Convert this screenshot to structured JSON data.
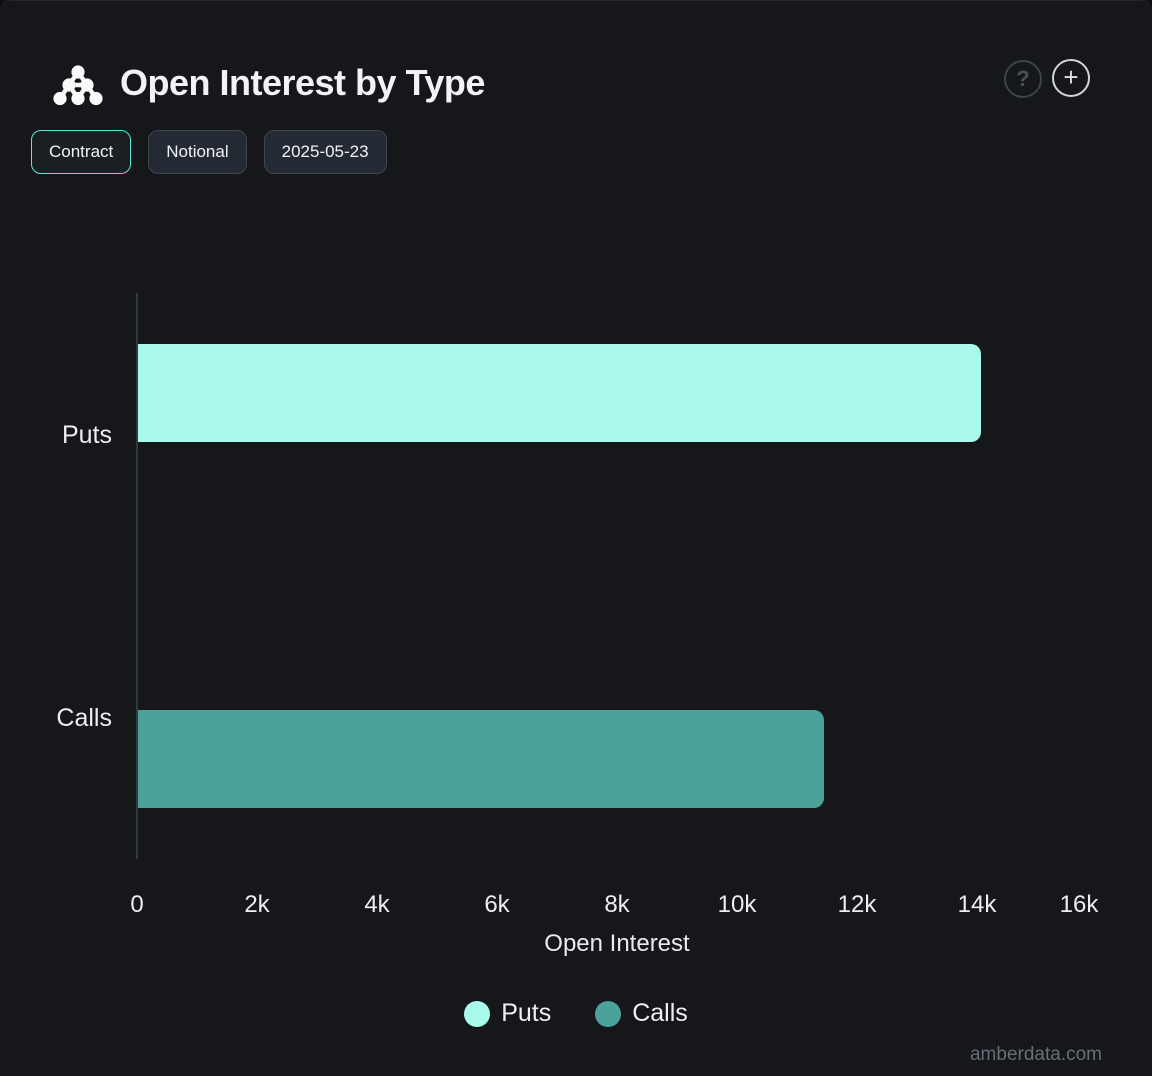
{
  "header": {
    "help_label": "?",
    "add_label": "+"
  },
  "toolbar": {
    "contract_label": "Contract",
    "notional_label": "Notional",
    "date_label": "2025-05-23"
  },
  "chart_data": {
    "type": "bar",
    "orientation": "horizontal",
    "title": "Open Interest by Type",
    "categories": [
      "Puts",
      "Calls"
    ],
    "series": [
      {
        "name": "Puts",
        "value": 14050,
        "color": "#a9faeb"
      },
      {
        "name": "Calls",
        "value": 11430,
        "color": "#4aa29a"
      }
    ],
    "xlabel": "Open Interest",
    "xlim": [
      0,
      16000
    ],
    "xticks": [
      {
        "value": 0,
        "label": "0"
      },
      {
        "value": 2000,
        "label": "2k"
      },
      {
        "value": 4000,
        "label": "4k"
      },
      {
        "value": 6000,
        "label": "6k"
      },
      {
        "value": 8000,
        "label": "8k"
      },
      {
        "value": 10000,
        "label": "10k"
      },
      {
        "value": 12000,
        "label": "12k"
      },
      {
        "value": 14000,
        "label": "14k"
      },
      {
        "value": 16000,
        "label": "16k"
      }
    ],
    "legend": {
      "position": "bottom",
      "entries": [
        "Puts",
        "Calls"
      ]
    },
    "grid": false,
    "colors": {
      "background": "#16171b",
      "accent": "#5fe8d1"
    }
  },
  "watermark": "amberdata.com"
}
